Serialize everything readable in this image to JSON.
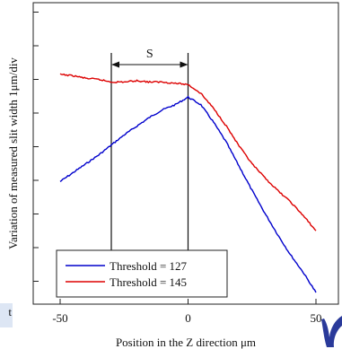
{
  "chart_data": {
    "type": "line",
    "xlabel": "Position in the Z direction   μm",
    "ylabel": "Variation of measured slit width   1μm/div",
    "xlim": [
      -55,
      50
    ],
    "ylim": [
      0,
      11
    ],
    "x_ticks": [
      -50,
      0,
      50
    ],
    "x_tick_labels": [
      "-50",
      "0",
      "50"
    ],
    "y_minor_ticks": [
      1,
      2,
      3,
      4,
      5,
      6,
      7,
      8,
      9,
      10
    ],
    "grid": false,
    "legend_position": "bottom-left",
    "annotation": {
      "label": "S",
      "x_start": -30,
      "x_end": 0
    },
    "series": [
      {
        "name": "Threshold = 127",
        "color": "#0000cc",
        "x": [
          -50,
          -45,
          -40,
          -35,
          -30,
          -25,
          -20,
          -15,
          -10,
          -5,
          0,
          5,
          10,
          15,
          20,
          25,
          30,
          35,
          40,
          45,
          50
        ],
        "y": [
          4.4,
          4.75,
          5.1,
          5.45,
          5.85,
          6.25,
          6.6,
          6.95,
          7.25,
          7.45,
          7.75,
          7.45,
          6.75,
          5.95,
          5.0,
          4.05,
          3.15,
          2.3,
          1.5,
          0.8,
          0.0
        ]
      },
      {
        "name": "Threshold = 145",
        "color": "#dd0000",
        "x": [
          -50,
          -45,
          -40,
          -35,
          -30,
          -25,
          -20,
          -15,
          -10,
          -5,
          0,
          5,
          10,
          15,
          20,
          25,
          30,
          35,
          40,
          45,
          50
        ],
        "y": [
          8.65,
          8.6,
          8.5,
          8.45,
          8.35,
          8.35,
          8.4,
          8.35,
          8.35,
          8.3,
          8.25,
          7.9,
          7.3,
          6.6,
          5.8,
          5.1,
          4.55,
          4.05,
          3.6,
          3.05,
          2.45
        ]
      }
    ]
  },
  "corner_text": "t"
}
